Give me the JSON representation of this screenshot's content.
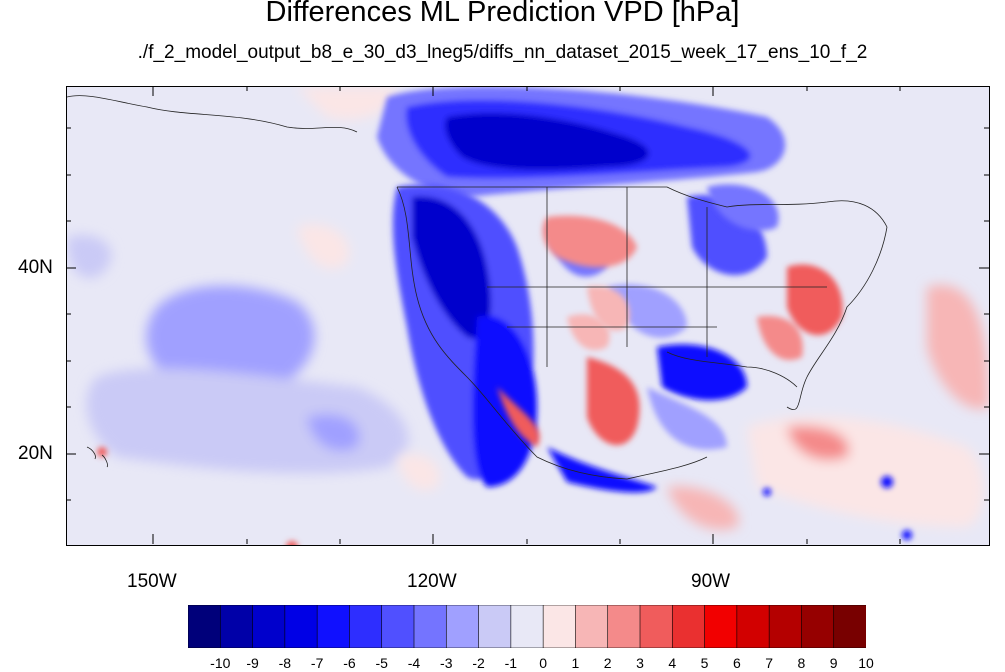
{
  "title": "Differences ML Prediction VPD [hPa]",
  "subtitle": "./f_2_model_output_b8_e_30_d3_lneg5/diffs_nn_dataset_2015_week_17_ens_10_f_2",
  "lat_labels": [
    "40N",
    "20N"
  ],
  "lon_labels": [
    "150W",
    "120W",
    "90W"
  ],
  "colorbar": {
    "labels": [
      "-10",
      "-9",
      "-8",
      "-7",
      "-6",
      "-5",
      "-4",
      "-3",
      "-2",
      "-1",
      "0",
      "1",
      "2",
      "3",
      "4",
      "5",
      "6",
      "7",
      "8",
      "9",
      "10"
    ],
    "colors": [
      "#00007a",
      "#0000a8",
      "#0000cc",
      "#0000e6",
      "#1010ff",
      "#2e2eff",
      "#5050ff",
      "#7474ff",
      "#a0a0ff",
      "#cacaf6",
      "#e8e8f6",
      "#fbe6e6",
      "#f7b6b6",
      "#f48a8a",
      "#f05c5c",
      "#ea3030",
      "#f20000",
      "#d20000",
      "#b40000",
      "#960000",
      "#780000"
    ]
  },
  "colors": {
    "background": "#e8e8f6",
    "negative_strong": "#1414f0",
    "positive_strong": "#f05c5c"
  }
}
